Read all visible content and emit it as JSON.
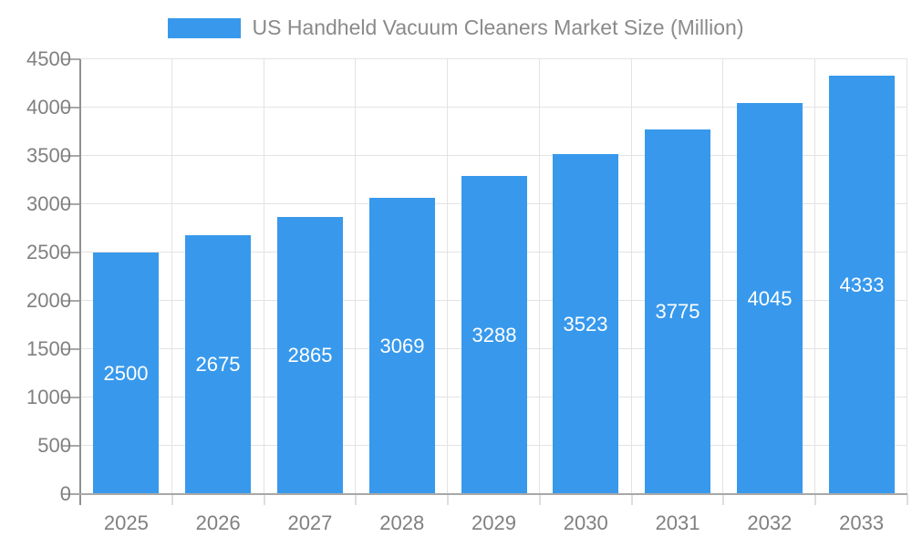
{
  "chart_data": {
    "type": "bar",
    "title": "US Handheld Vacuum Cleaners Market Size (Million)",
    "categories": [
      "2025",
      "2026",
      "2027",
      "2028",
      "2029",
      "2030",
      "2031",
      "2032",
      "2033"
    ],
    "values": [
      2500,
      2675,
      2865,
      3069,
      3288,
      3523,
      3775,
      4045,
      4333
    ],
    "xlabel": "",
    "ylabel": "",
    "ylim": [
      0,
      4500
    ],
    "ytick_step": 500,
    "grid": true,
    "legend_position": "top",
    "value_label_position": "inside-center"
  },
  "colors": {
    "bar": "#3899ec",
    "value_label": "#ffffff",
    "grid_line": "#e3e3e3",
    "y_axis_line": "#909090",
    "x_axis_line": "#a8a8a8",
    "y_tick": "#a8a8a8",
    "x_tick": "#dedede",
    "tick_label": "#808080",
    "legend_text": "#8a8a8a",
    "background": "#ffffff"
  }
}
